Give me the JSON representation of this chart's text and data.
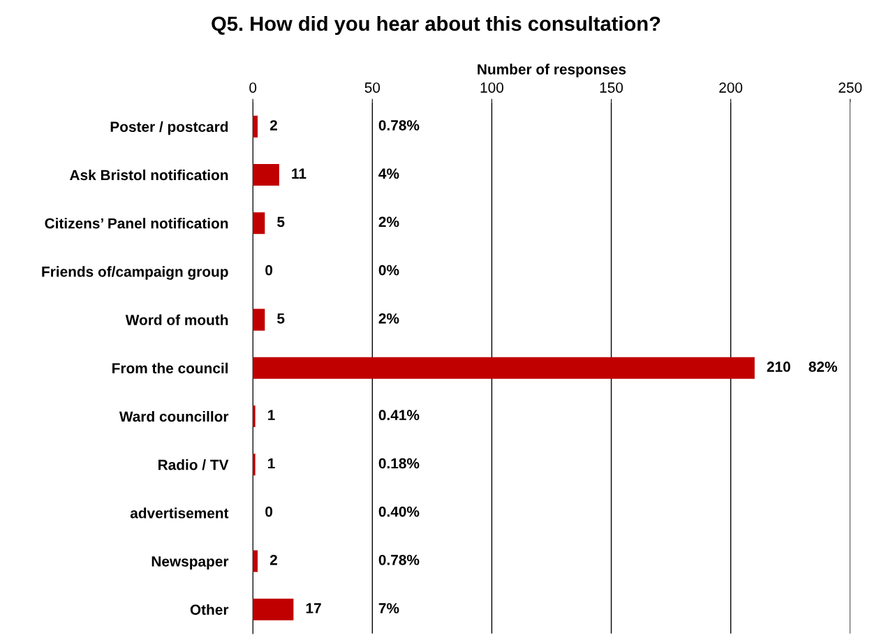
{
  "chart_data": {
    "type": "bar",
    "orientation": "horizontal",
    "title": "Q5. How did you hear about this consultation?",
    "xlabel": "Number of responses",
    "categories": [
      "Poster / postcard",
      "Ask Bristol notification",
      "Citizens’ Panel notification",
      "Friends of/campaign group",
      "Word of mouth",
      "From the council",
      "Ward councillor",
      "Radio / TV",
      "advertisement",
      "Newspaper",
      "Other"
    ],
    "values": [
      2,
      11,
      5,
      0,
      5,
      210,
      1,
      1,
      0,
      2,
      17
    ],
    "color": "#c00000",
    "xlim": [
      0,
      250
    ],
    "xticks": [
      0,
      50,
      100,
      150,
      200,
      250
    ],
    "grid": "x",
    "data_labels": true,
    "annotations": [
      "0.78%",
      "4%",
      "2%",
      "0%",
      "2%",
      "82%",
      "0.41%",
      "0.18%",
      "0.40%",
      "0.78%",
      "7%"
    ]
  }
}
